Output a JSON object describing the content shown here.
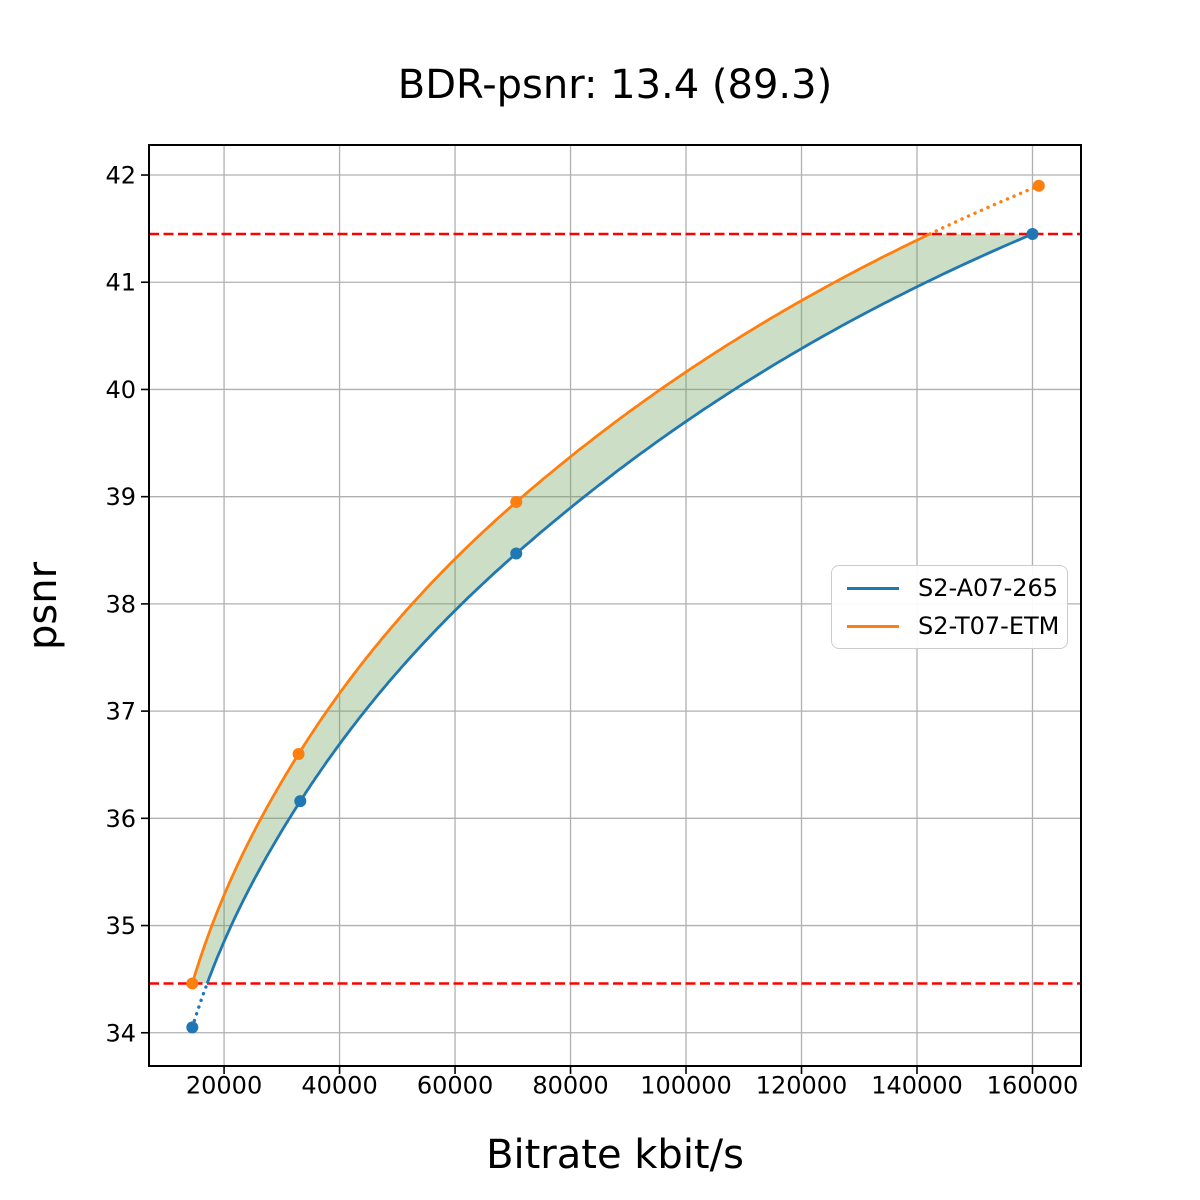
{
  "chart_data": {
    "type": "line",
    "title": "BDR-psnr: 13.4 (89.3)",
    "xlabel": "Bitrate kbit/s",
    "ylabel": "psnr",
    "xlim": [
      7000,
      168400
    ],
    "ylim": [
      33.69,
      42.28
    ],
    "xticks": [
      20000,
      40000,
      60000,
      80000,
      100000,
      120000,
      140000,
      160000
    ],
    "yticks": [
      34,
      35,
      36,
      37,
      38,
      39,
      40,
      41,
      42
    ],
    "grid": true,
    "grid_color": "#b0b0b0",
    "background": "#ffffff",
    "legend_position": "center right",
    "interpolation": "pchip-log-x",
    "series": [
      {
        "name": "S2-A07-265",
        "color": "#1f77b4",
        "x": [
          14500,
          33200,
          70600,
          160000
        ],
        "y": [
          34.05,
          36.16,
          38.47,
          41.45
        ]
      },
      {
        "name": "S2-T07-ETM",
        "color": "#ff7f0e",
        "x": [
          14500,
          32900,
          70600,
          161100
        ],
        "y": [
          34.46,
          36.6,
          38.95,
          41.9
        ]
      }
    ],
    "reference_lines": {
      "color": "#ff0000",
      "style": "dashed",
      "values": [
        34.46,
        41.45
      ]
    },
    "shaded_region": {
      "color": "#6ea05a",
      "opacity": 0.35,
      "between": [
        "S2-A07-265",
        "S2-T07-ETM"
      ]
    }
  }
}
